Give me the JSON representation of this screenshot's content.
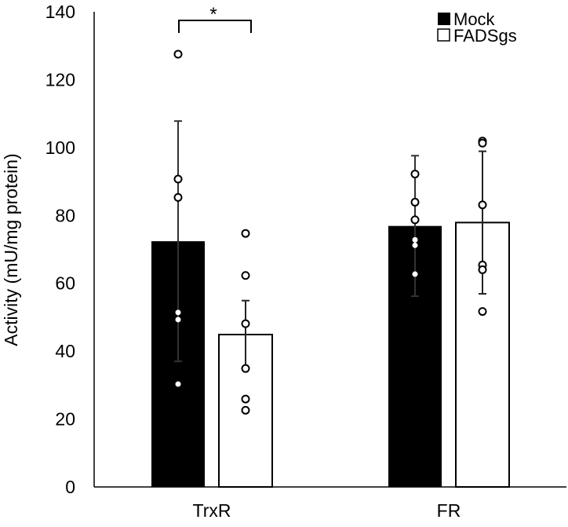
{
  "chart_data": {
    "type": "bar",
    "title": "",
    "xlabel": "",
    "ylabel": "Activity (mU/mg protein)",
    "ylim": [
      0,
      140
    ],
    "yticks": [
      0,
      20,
      40,
      60,
      80,
      100,
      120,
      140
    ],
    "categories": [
      "TrxR",
      "FR"
    ],
    "grid": false,
    "legend_position": "top-right",
    "series": [
      {
        "name": "Mock",
        "color": "#000000",
        "values": [
          72.4,
          76.9
        ],
        "errors": [
          35.4,
          20.7
        ],
        "points": [
          [
            127.5,
            90.7,
            85.3,
            51.4,
            49.3,
            30.3
          ],
          [
            92.2,
            83.9,
            78.7,
            72.8,
            71.2,
            62.7
          ]
        ]
      },
      {
        "name": "FADSgs",
        "color": "#ffffff",
        "values": [
          44.9,
          77.9
        ],
        "errors": [
          10.0,
          21.0
        ],
        "points": [
          [
            74.7,
            62.3,
            48.1,
            34.9,
            25.9,
            22.6
          ],
          [
            101.9,
            101.3,
            83.1,
            65.4,
            64.0,
            51.7
          ]
        ]
      }
    ],
    "annotations": [
      {
        "text": "*",
        "between": [
          "TrxR Mock",
          "TrxR FADSgs"
        ]
      }
    ]
  }
}
